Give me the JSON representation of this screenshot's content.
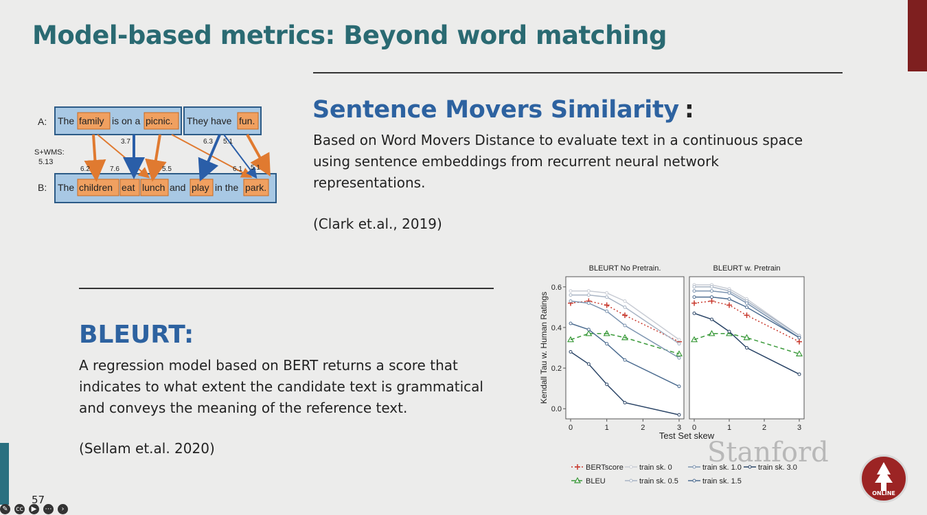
{
  "slide": {
    "title": "Model-based metrics: Beyond word matching",
    "page_number": "57"
  },
  "sms": {
    "title": "Sentence Movers Similarity",
    "colon": ":",
    "body_lines": [
      "Based on Word Movers Distance to evaluate text in a continuous space",
      "using sentence embeddings from recurrent neural network",
      "representations."
    ],
    "citation": "(Clark et.al., 2019)"
  },
  "diagram": {
    "label_a": "A:",
    "label_b": "B:",
    "score_label": "S+WMS:",
    "score_value": "5.13",
    "sentence_a1": [
      "The",
      "family",
      "is on a",
      "picnic."
    ],
    "sentence_a2": [
      "They have",
      "fun."
    ],
    "sentence_b": [
      "The",
      "children",
      "eat",
      "lunch",
      "and",
      "play",
      "in the",
      "park."
    ],
    "weights": [
      "3.7",
      "6.3",
      "5.1",
      "6.2",
      "7.6",
      "5.5",
      "6.1",
      "5.1"
    ],
    "colors": {
      "box_fill": "#a8c8e4",
      "box_border": "#2b5a86",
      "word_fill": "#f0a060",
      "word_border": "#c86a20",
      "orange_arrow": "#e07a30",
      "blue_arrow": "#2a5ea8"
    }
  },
  "bleurt": {
    "title": "BLEURT:",
    "body_lines": [
      "A regression model based on BERT returns a score that",
      "indicates to what extent the candidate text is grammatical",
      "and conveys the meaning of the reference text."
    ],
    "citation": "(Sellam et.al. 2020)"
  },
  "chart_data": {
    "type": "line",
    "ylabel": "Kendall Tau w. Human Ratings",
    "xlabel": "Test Set skew",
    "x": [
      0,
      0.5,
      1,
      1.5,
      3
    ],
    "x_ticks": [
      "0",
      "1",
      "2",
      "3"
    ],
    "y_ticks": [
      "0.0",
      "0.2",
      "0.4",
      "0.6"
    ],
    "ylim": [
      -0.05,
      0.65
    ],
    "xlim": [
      0,
      3
    ],
    "grid": false,
    "legend_position": "bottom",
    "panels": [
      {
        "title": "BLEURT No Pretrain.",
        "series": [
          {
            "name": "BERTscore",
            "values": [
              0.52,
              0.53,
              0.51,
              0.46,
              0.33
            ]
          },
          {
            "name": "BLEU",
            "values": [
              0.34,
              0.37,
              0.37,
              0.35,
              0.27
            ]
          },
          {
            "name": "train sk. 0",
            "values": [
              0.58,
              0.58,
              0.57,
              0.53,
              0.34
            ]
          },
          {
            "name": "train sk. 0.5",
            "values": [
              0.56,
              0.56,
              0.55,
              0.5,
              0.32
            ]
          },
          {
            "name": "train sk. 1.0",
            "values": [
              0.53,
              0.52,
              0.48,
              0.41,
              0.25
            ]
          },
          {
            "name": "train sk. 1.5",
            "values": [
              0.42,
              0.39,
              0.32,
              0.24,
              0.11
            ]
          },
          {
            "name": "train sk. 3.0",
            "values": [
              0.28,
              0.22,
              0.12,
              0.03,
              -0.03
            ]
          }
        ]
      },
      {
        "title": "BLEURT w. Pretrain",
        "series": [
          {
            "name": "BERTscore",
            "values": [
              0.52,
              0.53,
              0.51,
              0.46,
              0.33
            ]
          },
          {
            "name": "BLEU",
            "values": [
              0.34,
              0.37,
              0.37,
              0.35,
              0.27
            ]
          },
          {
            "name": "train sk. 0",
            "values": [
              0.61,
              0.61,
              0.59,
              0.54,
              0.36
            ]
          },
          {
            "name": "train sk. 0.5",
            "values": [
              0.6,
              0.6,
              0.58,
              0.53,
              0.36
            ]
          },
          {
            "name": "train sk. 1.0",
            "values": [
              0.58,
              0.58,
              0.57,
              0.52,
              0.35
            ]
          },
          {
            "name": "train sk. 1.5",
            "values": [
              0.55,
              0.55,
              0.54,
              0.5,
              0.35
            ]
          },
          {
            "name": "train sk. 3.0",
            "values": [
              0.47,
              0.44,
              0.38,
              0.3,
              0.17
            ]
          }
        ]
      }
    ],
    "legend": [
      "BERTscore",
      "train sk. 0",
      "train sk. 1.0",
      "train sk. 3.0",
      "BLEU",
      "train sk. 0.5",
      "train sk. 1.5"
    ],
    "colors": {
      "BERTscore": "#c8382c",
      "BLEU": "#3a9a3a",
      "train sk. 0": "#c8ccd4",
      "train sk. 0.5": "#a8b4c4",
      "train sk. 1.0": "#7c94b0",
      "train sk. 1.5": "#4c6c90",
      "train sk. 3.0": "#2a4466"
    }
  },
  "branding": {
    "watermark": "Stanford",
    "logo_text": "ONLINE"
  },
  "toolbar": {
    "icons": [
      "pen-icon",
      "captions-icon",
      "video-off-icon",
      "more-icon",
      "next-icon"
    ]
  }
}
